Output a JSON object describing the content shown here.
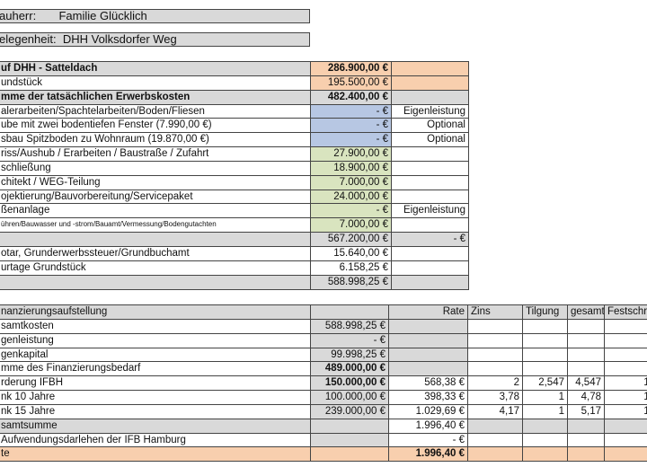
{
  "header": {
    "bauherr": "auherr:       Familie Glücklich",
    "gelegenheit": "elegenheit:  DHH Volksdorfer Weg"
  },
  "colors": {
    "grey": "#d9d9d9",
    "orange": "#f8cfae",
    "blue": "#b7c7e3",
    "green": "#d9e4bf",
    "white": "#ffffff"
  },
  "cost_table": {
    "rows": [
      {
        "cells": [
          {
            "t": "uf DHH - Satteldach",
            "f": "grey",
            "b": 1
          },
          {
            "t": "286.900,00 €",
            "f": "orange",
            "b": 1,
            "r": 1
          },
          {
            "t": "",
            "f": "orange"
          }
        ]
      },
      {
        "cells": [
          {
            "t": "undstück",
            "f": "white"
          },
          {
            "t": "195.500,00 €",
            "f": "orange",
            "r": 1
          },
          {
            "t": "",
            "f": "orange"
          }
        ]
      },
      {
        "cells": [
          {
            "t": "mme der tatsächlichen Erwerbskosten",
            "f": "grey",
            "b": 1
          },
          {
            "t": "482.400,00 €",
            "f": "grey",
            "b": 1,
            "r": 1
          },
          {
            "t": "",
            "f": "grey"
          }
        ]
      },
      {
        "cells": [
          {
            "t": "alerarbeiten/Spachtelarbeiten/Boden/Fliesen",
            "f": "white"
          },
          {
            "t": "-      €",
            "f": "blue",
            "r": 1
          },
          {
            "t": "Eigenleistung",
            "f": "white",
            "r": 1
          }
        ]
      },
      {
        "cells": [
          {
            "t": "ube mit zwei bodentiefen Fenster (7.990,00 €)",
            "f": "white"
          },
          {
            "t": "-      €",
            "f": "blue",
            "r": 1
          },
          {
            "t": "Optional",
            "f": "white",
            "r": 1
          }
        ]
      },
      {
        "cells": [
          {
            "t": "sbau Spitzboden zu Wohnraum (19.870,00 €)",
            "f": "white"
          },
          {
            "t": "-      €",
            "f": "blue",
            "r": 1
          },
          {
            "t": "Optional",
            "f": "white",
            "r": 1
          }
        ]
      },
      {
        "cells": [
          {
            "t": "riss/Aushub / Erarbeiten / Baustraße / Zufahrt",
            "f": "white"
          },
          {
            "t": "27.900,00 €",
            "f": "green",
            "r": 1
          },
          {
            "t": "",
            "f": "white"
          }
        ]
      },
      {
        "cells": [
          {
            "t": "schließung",
            "f": "white"
          },
          {
            "t": "18.900,00 €",
            "f": "green",
            "r": 1
          },
          {
            "t": "",
            "f": "white"
          }
        ]
      },
      {
        "cells": [
          {
            "t": "chitekt / WEG-Teilung",
            "f": "white"
          },
          {
            "t": "7.000,00 €",
            "f": "green",
            "r": 1
          },
          {
            "t": "",
            "f": "white"
          }
        ]
      },
      {
        "cells": [
          {
            "t": "ojektierung/Bauvorbereitung/Servicepaket",
            "f": "white"
          },
          {
            "t": "24.000,00 €",
            "f": "green",
            "r": 1
          },
          {
            "t": "",
            "f": "white"
          }
        ]
      },
      {
        "cells": [
          {
            "t": "ßenanlage",
            "f": "white"
          },
          {
            "t": "-      €",
            "f": "green",
            "r": 1
          },
          {
            "t": "Eigenleistung",
            "f": "white",
            "r": 1
          }
        ]
      },
      {
        "cells": [
          {
            "t": "ühren/Bauwasser und -strom/Bauamt/Vermessung/Bodengutachten",
            "f": "white",
            "s": 1
          },
          {
            "t": "7.000,00 €",
            "f": "green",
            "r": 1
          },
          {
            "t": "",
            "f": "white"
          }
        ]
      },
      {
        "cells": [
          {
            "t": "",
            "f": "grey"
          },
          {
            "t": "567.200,00 €",
            "f": "grey",
            "r": 1
          },
          {
            "t": "-      €",
            "f": "grey",
            "r": 1
          }
        ]
      },
      {
        "cells": [
          {
            "t": "otar, Grunderwerbssteuer/Grundbuchamt",
            "f": "white"
          },
          {
            "t": "15.640,00 €",
            "f": "white",
            "r": 1
          },
          {
            "t": "",
            "f": "white"
          }
        ]
      },
      {
        "cells": [
          {
            "t": "urtage Grundstück",
            "f": "white"
          },
          {
            "t": "6.158,25 €",
            "f": "white",
            "r": 1
          },
          {
            "t": "",
            "f": "white"
          }
        ]
      },
      {
        "cells": [
          {
            "t": "",
            "f": "grey"
          },
          {
            "t": "588.998,25 €",
            "f": "grey",
            "r": 1
          },
          {
            "t": "",
            "f": "grey"
          }
        ]
      }
    ]
  },
  "finance_table": {
    "rows": [
      {
        "cells": [
          {
            "t": "nanzierungsaufstellung",
            "f": "grey"
          },
          {
            "t": "",
            "f": "grey"
          },
          {
            "t": "Rate",
            "f": "grey",
            "r": 1
          },
          {
            "t": "Zins",
            "f": "grey"
          },
          {
            "t": "Tilgung",
            "f": "grey"
          },
          {
            "t": "gesamt",
            "f": "grey"
          },
          {
            "t": "Festschr.",
            "f": "grey"
          }
        ]
      },
      {
        "cells": [
          {
            "t": "samtkosten",
            "f": "white"
          },
          {
            "t": "588.998,25 €",
            "f": "grey",
            "r": 1
          },
          {
            "t": "",
            "f": "grey"
          },
          {
            "t": "",
            "f": "white"
          },
          {
            "t": "",
            "f": "white"
          },
          {
            "t": "",
            "f": "white"
          },
          {
            "t": "",
            "f": "white"
          }
        ]
      },
      {
        "cells": [
          {
            "t": "genleistung",
            "f": "white"
          },
          {
            "t": "-      €",
            "f": "grey",
            "r": 1
          },
          {
            "t": "",
            "f": "grey"
          },
          {
            "t": "",
            "f": "white"
          },
          {
            "t": "",
            "f": "white"
          },
          {
            "t": "",
            "f": "white"
          },
          {
            "t": "",
            "f": "white"
          }
        ]
      },
      {
        "cells": [
          {
            "t": "genkapital",
            "f": "white"
          },
          {
            "t": "99.998,25 €",
            "f": "grey",
            "r": 1
          },
          {
            "t": "",
            "f": "grey"
          },
          {
            "t": "",
            "f": "white"
          },
          {
            "t": "",
            "f": "white"
          },
          {
            "t": "",
            "f": "white"
          },
          {
            "t": "",
            "f": "white"
          }
        ]
      },
      {
        "cells": [
          {
            "t": "mme des Finanzierungsbedarf",
            "f": "white"
          },
          {
            "t": "489.000,00 €",
            "f": "grey",
            "b": 1,
            "r": 1
          },
          {
            "t": "",
            "f": "grey"
          },
          {
            "t": "",
            "f": "white"
          },
          {
            "t": "",
            "f": "white"
          },
          {
            "t": "",
            "f": "white"
          },
          {
            "t": "",
            "f": "white"
          }
        ]
      },
      {
        "cells": [
          {
            "t": "rderung IFBH",
            "f": "white"
          },
          {
            "t": "150.000,00 €",
            "f": "grey",
            "b": 1,
            "r": 1
          },
          {
            "t": "568,38 €",
            "f": "white",
            "r": 1
          },
          {
            "t": "2",
            "f": "white",
            "r": 1
          },
          {
            "t": "2,547",
            "f": "white",
            "r": 1
          },
          {
            "t": "4,547",
            "f": "white",
            "r": 1
          },
          {
            "t": "15",
            "f": "white",
            "r": 1
          }
        ]
      },
      {
        "cells": [
          {
            "t": "nk 10 Jahre",
            "f": "white"
          },
          {
            "t": "100.000,00 €",
            "f": "grey",
            "r": 1
          },
          {
            "t": "398,33 €",
            "f": "white",
            "r": 1
          },
          {
            "t": "3,78",
            "f": "white",
            "r": 1
          },
          {
            "t": "1",
            "f": "white",
            "r": 1
          },
          {
            "t": "4,78",
            "f": "white",
            "r": 1
          },
          {
            "t": "10",
            "f": "white",
            "r": 1
          }
        ]
      },
      {
        "cells": [
          {
            "t": "nk 15 Jahre",
            "f": "white"
          },
          {
            "t": "239.000,00 €",
            "f": "grey",
            "r": 1
          },
          {
            "t": "1.029,69 €",
            "f": "white",
            "r": 1
          },
          {
            "t": "4,17",
            "f": "white",
            "r": 1
          },
          {
            "t": "1",
            "f": "white",
            "r": 1
          },
          {
            "t": "5,17",
            "f": "white",
            "r": 1
          },
          {
            "t": "15",
            "f": "white",
            "r": 1
          }
        ]
      },
      {
        "cells": [
          {
            "t": "samtsumme",
            "f": "grey"
          },
          {
            "t": "",
            "f": "grey"
          },
          {
            "t": "1.996,40 €",
            "f": "white",
            "r": 1
          },
          {
            "t": "",
            "f": "grey"
          },
          {
            "t": "",
            "f": "grey"
          },
          {
            "t": "",
            "f": "grey"
          },
          {
            "t": "",
            "f": "grey"
          }
        ]
      },
      {
        "cells": [
          {
            "t": "Aufwendungsdarlehen  der IFB Hamburg",
            "f": "white"
          },
          {
            "t": "",
            "f": "grey"
          },
          {
            "t": "-      €",
            "f": "white",
            "r": 1
          },
          {
            "t": "",
            "f": "white"
          },
          {
            "t": "",
            "f": "white"
          },
          {
            "t": "",
            "f": "white"
          },
          {
            "t": "",
            "f": "white"
          }
        ]
      },
      {
        "cells": [
          {
            "t": "te",
            "f": "orange"
          },
          {
            "t": "",
            "f": "orange"
          },
          {
            "t": "1.996,40 €",
            "f": "orange",
            "b": 1,
            "r": 1
          },
          {
            "t": "",
            "f": "orange"
          },
          {
            "t": "",
            "f": "orange"
          },
          {
            "t": "",
            "f": "orange"
          },
          {
            "t": "",
            "f": "orange"
          }
        ]
      }
    ]
  }
}
